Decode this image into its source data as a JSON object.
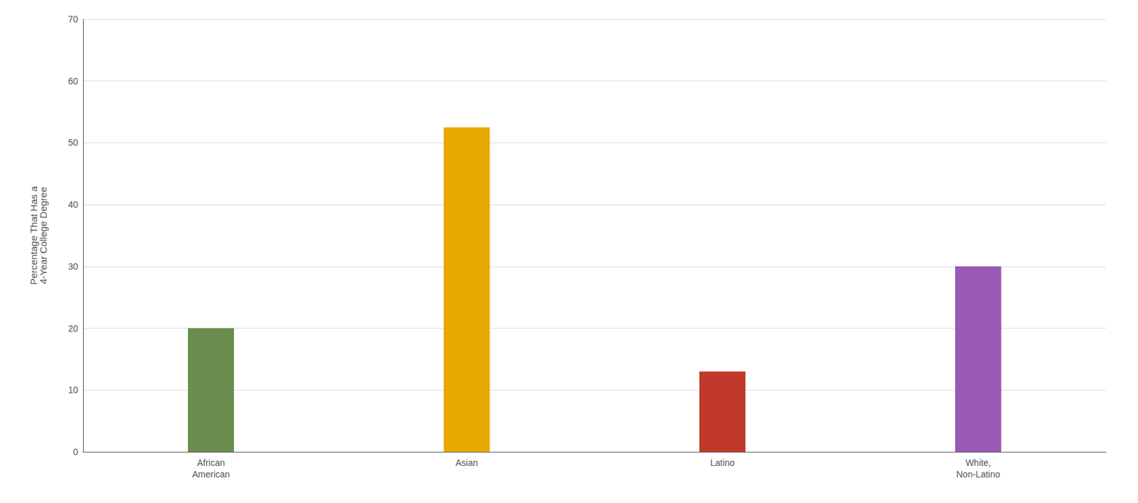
{
  "chart_data": {
    "type": "bar",
    "categories": [
      "African\nAmerican",
      "Asian",
      "Latino",
      "White,\nNon-Latino"
    ],
    "values": [
      20,
      52.5,
      13,
      30
    ],
    "colors": [
      "#6b8e4e",
      "#e8a800",
      "#c0392b",
      "#9b59b6"
    ],
    "ylabel": "Percentage That Has a\n4-Year College Degree",
    "ylim": [
      0,
      70
    ],
    "yticks": [
      0,
      10,
      20,
      30,
      40,
      50,
      60,
      70
    ],
    "grid": true
  }
}
